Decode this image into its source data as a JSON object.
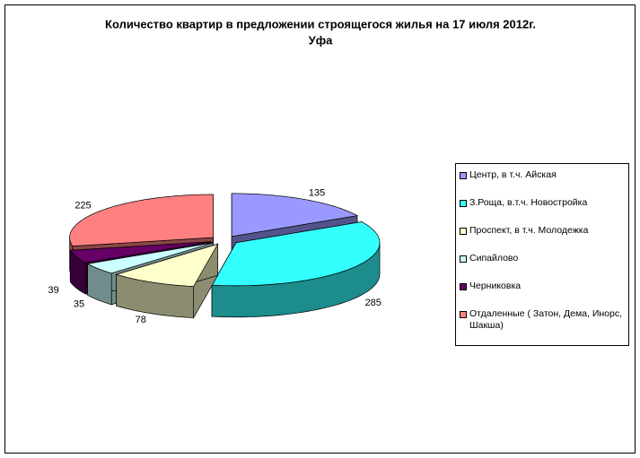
{
  "chart_data": {
    "type": "pie3d",
    "title": "Количество квартир в предложении строящегося жилья на 17 июля 2012г.",
    "subtitle": "Уфа",
    "categories": [
      "Центр, в т.ч. Айская",
      "З.Роща, в.т.ч. Новостройка",
      "Проспект, в т.ч. Молодежка",
      "Сипайлово",
      "Черниковка",
      "Отдаленные ( Затон, Дема, Инорс, Шакша)"
    ],
    "values": [
      135,
      285,
      78,
      35,
      39,
      225
    ],
    "colors": [
      "#9999ff",
      "#33ffff",
      "#ffffcc",
      "#ccffff",
      "#660066",
      "#ff8080"
    ],
    "legend": "right"
  }
}
